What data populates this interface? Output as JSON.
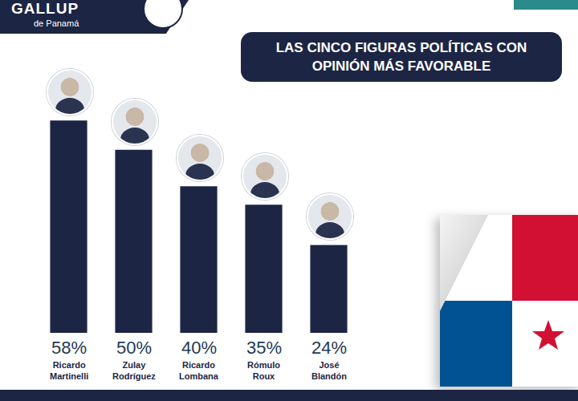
{
  "chart_data": {
    "type": "bar",
    "title": "LAS CINCO FIGURAS POLÍTICAS CON OPINIÓN MÁS FAVORABLE",
    "annotations": [
      "GALLUP",
      "de Panamá"
    ],
    "categories": [
      "Ricardo Martinelli",
      "Zulay Rodríguez",
      "Ricardo Lombana",
      "Rómulo Roux",
      "José Blandón"
    ],
    "values": [
      58,
      50,
      40,
      35,
      24
    ],
    "value_labels": [
      "58%",
      "50%",
      "40%",
      "35%",
      "24%"
    ],
    "color": "#1d2544",
    "ylim": [
      0,
      60
    ],
    "grid": false,
    "data_labels": true,
    "tick_labels": false
  }
}
